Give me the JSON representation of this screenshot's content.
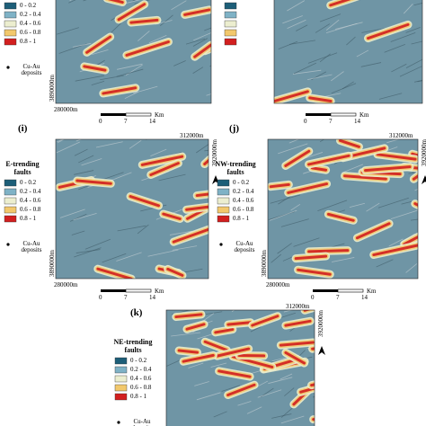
{
  "legend": {
    "classes": [
      "0 - 0.2",
      "0.2 - 0.4",
      "0.4 - 0.6",
      "0.6 - 0.8",
      "0.8 - 1"
    ],
    "colors": [
      "#1d5e78",
      "#7fb2c6",
      "#eceecf",
      "#f2c86c",
      "#d21f1f"
    ],
    "deposits": "Cu-Au deposits"
  },
  "scale_bar": {
    "ticks": [
      0,
      7,
      14
    ],
    "unit": "Km"
  },
  "panels": [
    {
      "left_northing": "3890000m",
      "bottom_easting": "280000m"
    },
    {},
    {
      "label": "(i)",
      "title": "E-trending faults",
      "top_easting": "312000m",
      "right_northing": "3920000m",
      "left_northing": "3890000m",
      "bottom_easting": "280000m"
    },
    {
      "label": "(j)",
      "title": "NW-trending faults",
      "top_easting": "312000m",
      "right_northing": "3920000m",
      "left_northing": "3890000m",
      "bottom_easting": "280000m"
    },
    {
      "label": "(k)",
      "title": "NE-trending faults",
      "top_easting": "312000m",
      "right_northing": "3920000m"
    }
  ]
}
